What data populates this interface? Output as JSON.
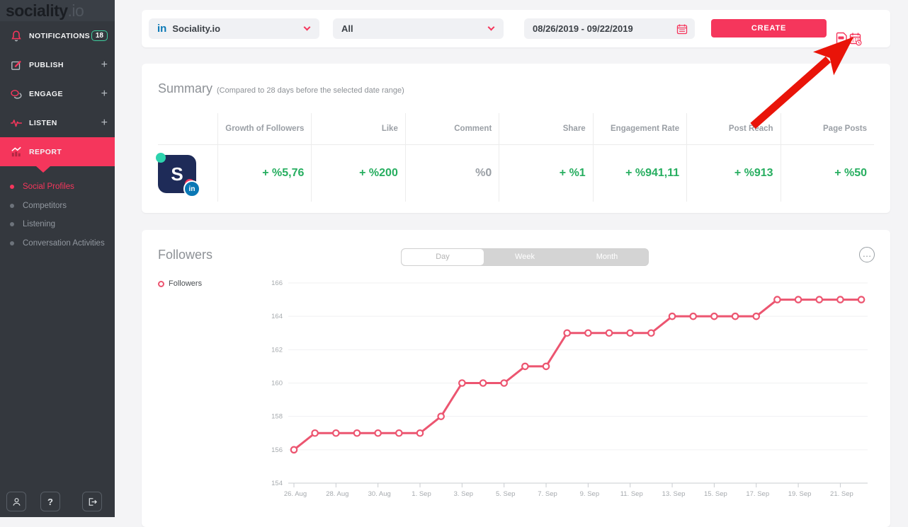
{
  "brand": {
    "logo_main": "sociality",
    "logo_suffix": ".io"
  },
  "colors": {
    "brand_pink": "#f5365c",
    "positive_green": "#27ae60",
    "chart_line": "#ec5570",
    "linkedin_blue": "#0a78b5",
    "arrow_red": "#e91409",
    "sidebar_bg": "#34383e"
  },
  "sidebar": {
    "items": [
      {
        "label": "NOTIFICATIONS",
        "icon": "bell-icon",
        "badge": "18"
      },
      {
        "label": "PUBLISH",
        "icon": "pencil-icon",
        "plus": "+"
      },
      {
        "label": "ENGAGE",
        "icon": "chat-bubbles-icon",
        "plus": "+"
      },
      {
        "label": "LISTEN",
        "icon": "waveform-icon",
        "plus": "+"
      },
      {
        "label": "REPORT",
        "icon": "report-chart-icon",
        "active": true
      }
    ],
    "subitems": [
      {
        "label": "Social Profiles",
        "active": true
      },
      {
        "label": "Competitors"
      },
      {
        "label": "Listening"
      },
      {
        "label": "Conversation Activities"
      }
    ],
    "footer_icons": [
      "user",
      "help",
      "logout"
    ],
    "help_glyph": "?"
  },
  "topbar": {
    "linkedin_label": "in",
    "account_selector": "Sociality.io",
    "filter_selector": "All",
    "date_range": "08/26/2019 - 09/22/2019",
    "create_label": "CREATE",
    "action_icons": [
      "ppt-export",
      "scheduled-reports"
    ]
  },
  "summary": {
    "title": "Summary",
    "subtitle": "(Compared to 28 days before the selected date range)",
    "columns": [
      "Growth of Followers",
      "Like",
      "Comment",
      "Share",
      "Engagement Rate",
      "Post Reach",
      "Page Posts"
    ],
    "row": {
      "avatar_letter": "S",
      "avatar_badge": "in",
      "values": [
        {
          "text": "+ %5,76",
          "positive": true
        },
        {
          "text": "+ %200",
          "positive": true
        },
        {
          "text": "%0",
          "positive": false
        },
        {
          "text": "+ %1",
          "positive": true
        },
        {
          "text": "+ %941,11",
          "positive": true
        },
        {
          "text": "+ %913",
          "positive": true
        },
        {
          "text": "+ %50",
          "positive": true
        }
      ]
    }
  },
  "followers": {
    "title": "Followers",
    "tabs": [
      "Day",
      "Week",
      "Month"
    ],
    "active_tab": "Day",
    "legend": "Followers"
  },
  "chart_data": {
    "type": "line",
    "title": "Followers",
    "x": [
      "26. Aug",
      "27. Aug",
      "28. Aug",
      "29. Aug",
      "30. Aug",
      "31. Aug",
      "1. Sep",
      "2. Sep",
      "3. Sep",
      "4. Sep",
      "5. Sep",
      "6. Sep",
      "7. Sep",
      "8. Sep",
      "9. Sep",
      "10. Sep",
      "11. Sep",
      "12. Sep",
      "13. Sep",
      "14. Sep",
      "15. Sep",
      "16. Sep",
      "17. Sep",
      "18. Sep",
      "19. Sep",
      "20. Sep",
      "21. Sep",
      "22. Sep"
    ],
    "series": [
      {
        "name": "Followers",
        "values": [
          156,
          157,
          157,
          157,
          157,
          157,
          157,
          158,
          160,
          160,
          160,
          161,
          161,
          163,
          163,
          163,
          163,
          163,
          164,
          164,
          164,
          164,
          164,
          165,
          165,
          165,
          165,
          165
        ]
      }
    ],
    "tick_every": 2,
    "yticks": [
      154,
      156,
      158,
      160,
      162,
      164,
      166
    ],
    "ylim": [
      154,
      166
    ],
    "grid": true,
    "legend_position": "left-above",
    "line_color": "#ec5570"
  }
}
